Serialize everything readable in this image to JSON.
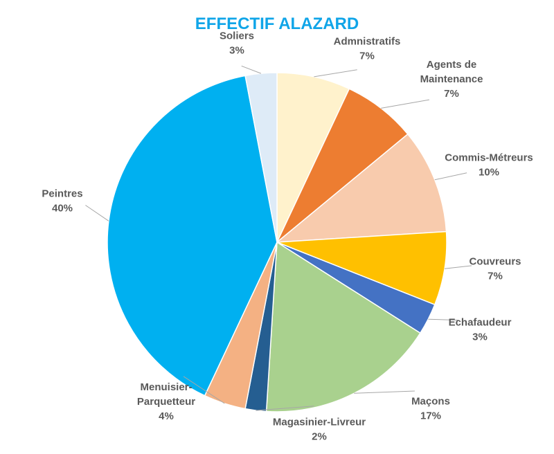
{
  "chart_data": {
    "type": "pie",
    "title": "EFFECTIF ALAZARD",
    "title_color": "#10A5E8",
    "label_color": "#595959",
    "leader_color": "#A6A6A6",
    "slice_border_color": "#FFFFFF",
    "legend": "none",
    "start": "12 o'clock, clockwise",
    "slices": [
      {
        "label": [
          "Admnistratifs"
        ],
        "percent_label": "7%",
        "value": 7,
        "color": "#FFF2CC"
      },
      {
        "label": [
          "Agents de",
          "Maintenance"
        ],
        "percent_label": "7%",
        "value": 7,
        "color": "#ED7D31"
      },
      {
        "label": [
          "Commis-Métreurs"
        ],
        "percent_label": "10%",
        "value": 10,
        "color": "#F8CBAD"
      },
      {
        "label": [
          "Couvreurs"
        ],
        "percent_label": "7%",
        "value": 7,
        "color": "#FFC000"
      },
      {
        "label": [
          "Echafaudeur"
        ],
        "percent_label": "3%",
        "value": 3,
        "color": "#4472C4"
      },
      {
        "label": [
          "Maçons"
        ],
        "percent_label": "17%",
        "value": 17,
        "color": "#A9D18E"
      },
      {
        "label": [
          "Magasinier-Livreur"
        ],
        "percent_label": "2%",
        "value": 2,
        "color": "#255E91"
      },
      {
        "label": [
          "Menuisier-",
          "Parquetteur"
        ],
        "percent_label": "4%",
        "value": 4,
        "color": "#F4B183"
      },
      {
        "label": [
          "Peintres"
        ],
        "percent_label": "40%",
        "value": 40,
        "color": "#00B0F0"
      },
      {
        "label": [
          "Soliers"
        ],
        "percent_label": "3%",
        "value": 3,
        "color": "#DEEBF7"
      }
    ]
  }
}
